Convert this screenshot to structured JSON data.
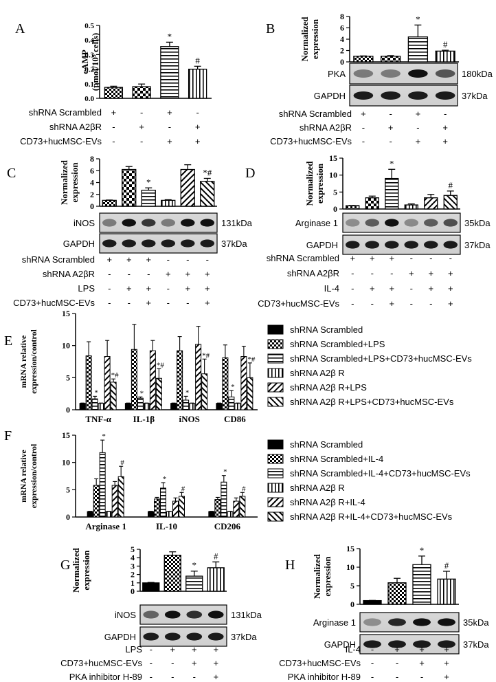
{
  "chart_data": [
    {
      "panel": "A",
      "type": "bar",
      "ylabel": "cAMP\n(pmol/10⁵ cells)",
      "ylim": [
        0,
        0.5
      ],
      "yticks": [
        "0.0",
        "0.1",
        "0.2",
        "0.3",
        "0.4",
        "0.5"
      ],
      "values": [
        0.075,
        0.08,
        0.355,
        0.2
      ],
      "errors": [
        0.008,
        0.018,
        0.03,
        0.02
      ],
      "marks": [
        "",
        "",
        "*",
        "#"
      ],
      "patterns": [
        "checker",
        "checker2",
        "hstripe",
        "vstripe"
      ],
      "conditions": [
        {
          "label": "shRNA Scrambled",
          "signs": [
            "+",
            "-",
            "+",
            "-"
          ]
        },
        {
          "label": "shRNA A2βR",
          "signs": [
            "-",
            "+",
            "-",
            "+"
          ]
        },
        {
          "label": "CD73+hucMSC-EVs",
          "signs": [
            "-",
            "-",
            "+",
            "+"
          ]
        }
      ]
    },
    {
      "panel": "B",
      "type": "bar",
      "ylabel": "Normalized\nexpression",
      "ylim": [
        0,
        8
      ],
      "yticks": [
        "0",
        "2",
        "4",
        "6",
        "8"
      ],
      "values": [
        1.0,
        1.0,
        4.4,
        1.9
      ],
      "errors": [
        0.05,
        0.1,
        2.1,
        0.15
      ],
      "marks": [
        "",
        "",
        "*",
        "#"
      ],
      "patterns": [
        "checker",
        "checker2",
        "hstripe",
        "vstripe"
      ],
      "blots": [
        {
          "label": "PKA",
          "size": "180kDa"
        },
        {
          "label": "GAPDH",
          "size": "37kDa"
        }
      ],
      "conditions": [
        {
          "label": "shRNA Scrambled",
          "signs": [
            "+",
            "-",
            "+",
            "-"
          ]
        },
        {
          "label": "shRNA A2βR",
          "signs": [
            "-",
            "+",
            "-",
            "+"
          ]
        },
        {
          "label": "CD73+hucMSC-EVs",
          "signs": [
            "-",
            "-",
            "+",
            "+"
          ]
        }
      ]
    },
    {
      "panel": "C",
      "type": "bar",
      "ylabel": "Normalized\nexpression",
      "ylim": [
        0,
        8
      ],
      "yticks": [
        "0",
        "2",
        "4",
        "6",
        "8"
      ],
      "values": [
        1.0,
        6.2,
        2.7,
        1.0,
        6.2,
        4.2
      ],
      "errors": [
        0.05,
        0.5,
        0.4,
        0.1,
        0.8,
        0.5
      ],
      "marks": [
        "",
        "",
        "*",
        "",
        "",
        "*#"
      ],
      "patterns": [
        "checker",
        "checker2",
        "hstripe",
        "vstripe",
        "diag",
        "diag2"
      ],
      "blots": [
        {
          "label": "iNOS",
          "size": "131kDa"
        },
        {
          "label": "GAPDH",
          "size": "37kDa"
        }
      ],
      "conditions": [
        {
          "label": "shRNA Scrambled",
          "signs": [
            "+",
            "+",
            "+",
            "-",
            "-",
            "-"
          ]
        },
        {
          "label": "shRNA A2βR",
          "signs": [
            "-",
            "-",
            "-",
            "+",
            "+",
            "+"
          ]
        },
        {
          "label": "LPS",
          "signs": [
            "-",
            "+",
            "+",
            "-",
            "+",
            "+"
          ]
        },
        {
          "label": "CD73+hucMSC-EVs",
          "signs": [
            "-",
            "-",
            "+",
            "-",
            "-",
            "+"
          ]
        }
      ]
    },
    {
      "panel": "D",
      "type": "bar",
      "ylabel": "Normalized\nexpression",
      "ylim": [
        0,
        15
      ],
      "yticks": [
        "0",
        "5",
        "10",
        "15"
      ],
      "values": [
        1.0,
        3.3,
        9.0,
        1.2,
        3.3,
        4.0
      ],
      "errors": [
        0.05,
        0.5,
        2.7,
        0.3,
        1.0,
        1.3
      ],
      "marks": [
        "",
        "",
        "*",
        "",
        "",
        "#"
      ],
      "patterns": [
        "checker",
        "checker2",
        "hstripe",
        "vstripe",
        "diag",
        "diag2"
      ],
      "blots": [
        {
          "label": "Arginase 1",
          "size": "35kDa"
        },
        {
          "label": "GAPDH",
          "size": "37kDa"
        }
      ],
      "conditions": [
        {
          "label": "shRNA Scrambled",
          "signs": [
            "+",
            "+",
            "+",
            "-",
            "-",
            "-"
          ]
        },
        {
          "label": "shRNA A2βR",
          "signs": [
            "-",
            "-",
            "-",
            "+",
            "+",
            "+"
          ]
        },
        {
          "label": "IL-4",
          "signs": [
            "-",
            "+",
            "+",
            "-",
            "+",
            "+"
          ]
        },
        {
          "label": "CD73+hucMSC-EVs",
          "signs": [
            "-",
            "-",
            "+",
            "-",
            "-",
            "+"
          ]
        }
      ]
    },
    {
      "panel": "E",
      "type": "bar",
      "ylabel": "mRNA relative\nexpression/control",
      "ylim": [
        0,
        15
      ],
      "yticks": [
        "0",
        "5",
        "10",
        "15"
      ],
      "categories": [
        "TNF-α",
        "IL-1β",
        "iNOS",
        "CD86"
      ],
      "series": [
        {
          "name": "shRNA Scrambled",
          "values": [
            1.0,
            1.0,
            1.0,
            1.0
          ],
          "errors": [
            0.05,
            0.05,
            0.05,
            0.05
          ]
        },
        {
          "name": "shRNA Scrambled+LPS",
          "values": [
            8.4,
            9.4,
            9.2,
            8.1
          ],
          "errors": [
            2.2,
            3.9,
            2.2,
            2.0
          ]
        },
        {
          "name": "shRNA Scrambled+LPS+CD73+hucMSC-EVs",
          "values": [
            1.7,
            1.8,
            1.5,
            2.0
          ],
          "errors": [
            0.4,
            0.2,
            0.6,
            1.0
          ]
        },
        {
          "name": "shRNA A2β R",
          "values": [
            1.0,
            1.0,
            1.0,
            1.0
          ],
          "errors": [
            0.05,
            0.05,
            0.05,
            0.05
          ]
        },
        {
          "name": "shRNA A2β R+LPS",
          "values": [
            8.3,
            9.2,
            10.2,
            8.3
          ],
          "errors": [
            2.5,
            1.6,
            2.8,
            1.6
          ]
        },
        {
          "name": "shRNA A2β R+LPS+CD73+hucMSC-EVs",
          "values": [
            4.3,
            4.9,
            5.6,
            5.0
          ],
          "errors": [
            0.5,
            1.5,
            2.3,
            2.3
          ]
        }
      ],
      "marks": [
        [
          "",
          "",
          "*",
          "",
          "",
          "*#"
        ],
        [
          "",
          "",
          "*",
          "",
          "",
          "*#"
        ],
        [
          "",
          "",
          "*",
          "",
          "",
          "*#"
        ],
        [
          "",
          "",
          "*",
          "",
          "",
          "*#"
        ]
      ]
    },
    {
      "panel": "F",
      "type": "bar",
      "ylabel": "mRNA relative\nexpression/control",
      "ylim": [
        0,
        15
      ],
      "yticks": [
        "0",
        "5",
        "10",
        "15"
      ],
      "categories": [
        "Arginase 1",
        "IL-10",
        "CD206"
      ],
      "series": [
        {
          "name": "shRNA Scrambled",
          "values": [
            1.0,
            1.0,
            1.0
          ],
          "errors": [
            0.05,
            0.05,
            0.05
          ]
        },
        {
          "name": "shRNA Scrambled+IL-4",
          "values": [
            5.8,
            3.3,
            3.2
          ],
          "errors": [
            1.2,
            0.3,
            0.4
          ]
        },
        {
          "name": "shRNA Scrambled+IL-4+CD73+hucMSC-EVs",
          "values": [
            11.8,
            5.3,
            6.4
          ],
          "errors": [
            2.3,
            1.0,
            1.2
          ]
        },
        {
          "name": "shRNA A2β R",
          "values": [
            1.0,
            1.0,
            1.0
          ],
          "errors": [
            0.05,
            0.05,
            0.05
          ]
        },
        {
          "name": "shRNA A2β R+IL-4",
          "values": [
            5.8,
            2.9,
            2.9
          ],
          "errors": [
            0.7,
            0.6,
            0.6
          ]
        },
        {
          "name": "shRNA A2β R+IL-4+CD73+hucMSC-EVs",
          "values": [
            7.4,
            3.8,
            3.8
          ],
          "errors": [
            1.9,
            0.7,
            0.7
          ]
        }
      ],
      "marks": [
        [
          "",
          "",
          "*",
          "",
          "",
          "#"
        ],
        [
          "",
          "",
          "*",
          "",
          "",
          "#"
        ],
        [
          "",
          "",
          "*",
          "",
          "",
          "#"
        ]
      ]
    },
    {
      "panel": "G",
      "type": "bar",
      "ylabel": "Normalized\nexpression",
      "ylim": [
        0,
        5
      ],
      "yticks": [
        "0",
        "1",
        "2",
        "3",
        "4",
        "5"
      ],
      "values": [
        1.0,
        4.3,
        1.8,
        2.8
      ],
      "errors": [
        0.05,
        0.4,
        0.6,
        0.7
      ],
      "marks": [
        "",
        "",
        "*",
        "#"
      ],
      "patterns": [
        "solid",
        "checker",
        "hstripe",
        "vstripe"
      ],
      "blots": [
        {
          "label": "iNOS",
          "size": "131kDa"
        },
        {
          "label": "GAPDH",
          "size": "37kDa"
        }
      ],
      "conditions": [
        {
          "label": "LPS",
          "signs": [
            "-",
            "+",
            "+",
            "+"
          ]
        },
        {
          "label": "CD73+hucMSC-EVs",
          "signs": [
            "-",
            "-",
            "+",
            "+"
          ]
        },
        {
          "label": "PKA inhibitor H-89",
          "signs": [
            "-",
            "-",
            "-",
            "+"
          ]
        }
      ]
    },
    {
      "panel": "H",
      "type": "bar",
      "ylabel": "Normalized\nexpression",
      "ylim": [
        0,
        15
      ],
      "yticks": [
        "0",
        "5",
        "10",
        "15"
      ],
      "values": [
        1.0,
        5.8,
        10.7,
        6.8
      ],
      "errors": [
        0.05,
        1.2,
        2.3,
        2.1
      ],
      "marks": [
        "",
        "",
        "*",
        "#"
      ],
      "patterns": [
        "solid",
        "checker",
        "hstripe",
        "vstripe"
      ],
      "blots": [
        {
          "label": "Arginase 1",
          "size": "35kDa"
        },
        {
          "label": "GAPDH",
          "size": "37kDa"
        }
      ],
      "conditions": [
        {
          "label": "IL-4",
          "signs": [
            "-",
            "+",
            "+",
            "+"
          ]
        },
        {
          "label": "CD73+hucMSC-EVs",
          "signs": [
            "-",
            "-",
            "+",
            "+"
          ]
        },
        {
          "label": "PKA inhibitor H-89",
          "signs": [
            "-",
            "-",
            "-",
            "+"
          ]
        }
      ]
    }
  ],
  "legend_patterns": [
    "solid",
    "checker",
    "hstripe",
    "vstripe",
    "diag",
    "diag2"
  ]
}
